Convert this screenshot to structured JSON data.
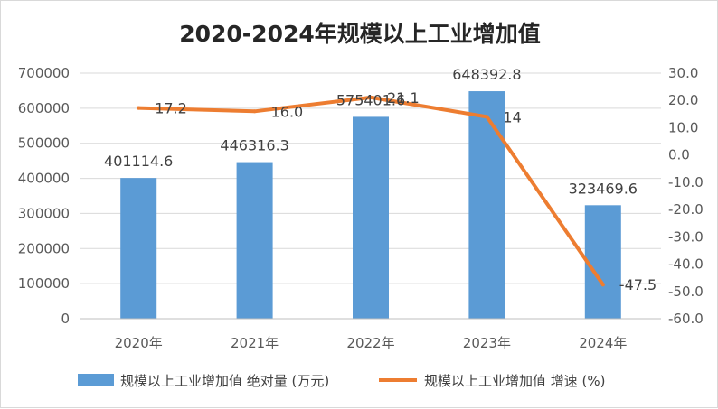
{
  "chart_data": {
    "type": "bar",
    "title": "2020-2024年规模以上工业增加值",
    "categories": [
      "2020年",
      "2021年",
      "2022年",
      "2023年",
      "2024年"
    ],
    "series": [
      {
        "name": "规模以上工业增加值 绝对量 (万元)",
        "type": "bar",
        "axis": "left",
        "color": "#5b9bd5",
        "values": [
          401114.6,
          446316.3,
          575401.6,
          648392.8,
          323469.6
        ],
        "labels": [
          "401114.6",
          "446316.3",
          "575401.6",
          "648392.8",
          "323469.6"
        ]
      },
      {
        "name": "规模以上工业增加值 增速 (%)",
        "type": "line",
        "axis": "right",
        "color": "#ed7d31",
        "values": [
          17.2,
          16.0,
          21.1,
          14,
          -47.5
        ],
        "labels": [
          "17.2",
          "16.0",
          "21.1",
          "14",
          "-47.5"
        ]
      }
    ],
    "y_left": {
      "ylim": [
        0,
        700000
      ],
      "ticks": [
        "0",
        "100000",
        "200000",
        "300000",
        "400000",
        "500000",
        "600000",
        "700000"
      ]
    },
    "y_right": {
      "ylim": [
        -60,
        30
      ],
      "ticks": [
        "-60.0",
        "-50.0",
        "-40.0",
        "-30.0",
        "-20.0",
        "-10.0",
        "0.0",
        "10.0",
        "20.0",
        "30.0"
      ]
    },
    "grid": true,
    "legend_position": "bottom"
  }
}
